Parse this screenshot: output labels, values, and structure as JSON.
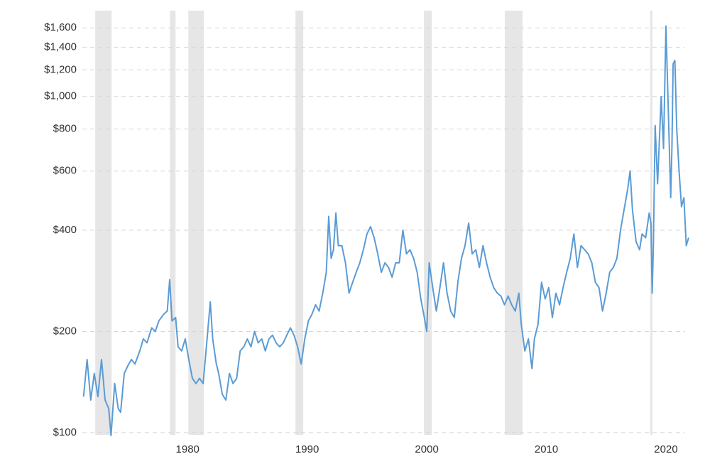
{
  "chart_data": {
    "type": "line",
    "color": "#5b9bd5",
    "log_y": true,
    "grid": true,
    "shade_color": "#e6e6e6",
    "xlim": [
      1971.2,
      2021.9
    ],
    "xticks": [
      1980,
      1990,
      2000,
      2010,
      2020
    ],
    "ylim": [
      98.5,
      1800
    ],
    "yticks": [
      {
        "value": 100,
        "label": "$100"
      },
      {
        "value": 200,
        "label": "$200"
      },
      {
        "value": 400,
        "label": "$400"
      },
      {
        "value": 600,
        "label": "$600"
      },
      {
        "value": 800,
        "label": "$800"
      },
      {
        "value": 1000,
        "label": "$1,000"
      },
      {
        "value": 1200,
        "label": "$1,200"
      },
      {
        "value": 1400,
        "label": "$1,400"
      },
      {
        "value": 1600,
        "label": "$1,600"
      }
    ],
    "shaded_ranges": [
      [
        1972.28,
        1973.65
      ],
      [
        1978.52,
        1978.99
      ],
      [
        1980.06,
        1981.36
      ],
      [
        1989.02,
        1989.67
      ],
      [
        1999.76,
        2000.42
      ],
      [
        2006.53,
        2008.01
      ],
      [
        2018.69,
        2018.87
      ]
    ],
    "x": [
      1971.3,
      1971.6,
      1971.9,
      1972.2,
      1972.5,
      1972.8,
      1973.1,
      1973.4,
      1973.6,
      1973.9,
      1974.2,
      1974.4,
      1974.7,
      1975.0,
      1975.3,
      1975.6,
      1976.0,
      1976.3,
      1976.6,
      1977.0,
      1977.3,
      1977.6,
      1978.0,
      1978.3,
      1978.5,
      1978.7,
      1979.0,
      1979.2,
      1979.5,
      1979.8,
      1980.1,
      1980.4,
      1980.7,
      1981.0,
      1981.3,
      1981.6,
      1981.9,
      1982.1,
      1982.4,
      1982.6,
      1982.9,
      1983.2,
      1983.5,
      1983.8,
      1984.1,
      1984.4,
      1984.7,
      1985.0,
      1985.3,
      1985.6,
      1985.9,
      1986.2,
      1986.5,
      1986.8,
      1987.1,
      1987.4,
      1987.7,
      1988.0,
      1988.3,
      1988.6,
      1988.9,
      1989.2,
      1989.5,
      1989.8,
      1990.1,
      1990.4,
      1990.7,
      1991.0,
      1991.3,
      1991.6,
      1991.8,
      1992.0,
      1992.2,
      1992.4,
      1992.6,
      1992.9,
      1993.2,
      1993.5,
      1993.8,
      1994.1,
      1994.4,
      1994.7,
      1995.0,
      1995.3,
      1995.6,
      1995.9,
      1996.2,
      1996.5,
      1996.8,
      1997.1,
      1997.4,
      1997.7,
      1998.0,
      1998.3,
      1998.6,
      1998.9,
      1999.2,
      1999.5,
      1999.8,
      2000.0,
      2000.2,
      2000.5,
      2000.8,
      2001.1,
      2001.4,
      2001.7,
      2002.0,
      2002.3,
      2002.6,
      2002.9,
      2003.2,
      2003.5,
      2003.8,
      2004.1,
      2004.4,
      2004.7,
      2005.0,
      2005.3,
      2005.6,
      2005.9,
      2006.2,
      2006.5,
      2006.8,
      2007.1,
      2007.4,
      2007.7,
      2007.9,
      2008.2,
      2008.5,
      2008.8,
      2009.0,
      2009.3,
      2009.6,
      2009.9,
      2010.2,
      2010.5,
      2010.8,
      2011.1,
      2011.4,
      2011.7,
      2012.0,
      2012.3,
      2012.6,
      2012.9,
      2013.2,
      2013.5,
      2013.8,
      2014.1,
      2014.4,
      2014.7,
      2015.0,
      2015.3,
      2015.6,
      2015.9,
      2016.2,
      2016.5,
      2016.8,
      2017.0,
      2017.2,
      2017.5,
      2017.8,
      2018.0,
      2018.3,
      2018.6,
      2018.75,
      2018.85,
      2018.95,
      2019.1,
      2019.3,
      2019.6,
      2019.8,
      2020.0,
      2020.2,
      2020.4,
      2020.5,
      2020.6,
      2020.75,
      2020.9,
      2021.1,
      2021.3,
      2021.5,
      2021.7,
      2021.9
    ],
    "values": [
      128,
      165,
      125,
      150,
      128,
      165,
      125,
      118,
      98,
      140,
      118,
      115,
      150,
      158,
      165,
      160,
      175,
      190,
      185,
      205,
      200,
      215,
      225,
      230,
      285,
      215,
      220,
      180,
      175,
      190,
      165,
      145,
      140,
      145,
      140,
      185,
      245,
      190,
      160,
      150,
      130,
      125,
      150,
      140,
      145,
      175,
      180,
      190,
      180,
      200,
      185,
      190,
      175,
      190,
      195,
      185,
      180,
      185,
      195,
      205,
      195,
      180,
      160,
      190,
      215,
      225,
      240,
      230,
      260,
      300,
      440,
      330,
      350,
      450,
      360,
      360,
      320,
      260,
      280,
      300,
      320,
      350,
      390,
      410,
      380,
      340,
      300,
      320,
      310,
      290,
      320,
      320,
      400,
      340,
      350,
      330,
      300,
      250,
      220,
      200,
      320,
      270,
      230,
      270,
      320,
      260,
      230,
      220,
      280,
      330,
      360,
      420,
      340,
      350,
      310,
      360,
      320,
      290,
      270,
      260,
      255,
      240,
      255,
      240,
      230,
      260,
      210,
      175,
      190,
      155,
      190,
      210,
      280,
      250,
      270,
      220,
      260,
      240,
      270,
      300,
      330,
      390,
      310,
      360,
      350,
      340,
      320,
      280,
      270,
      230,
      260,
      300,
      310,
      330,
      400,
      460,
      530,
      600,
      460,
      370,
      350,
      390,
      380,
      450,
      420,
      260,
      360,
      820,
      550,
      1000,
      700,
      1620,
      900,
      500,
      700,
      1250,
      1280,
      800,
      600,
      470,
      500,
      360,
      380
    ]
  }
}
